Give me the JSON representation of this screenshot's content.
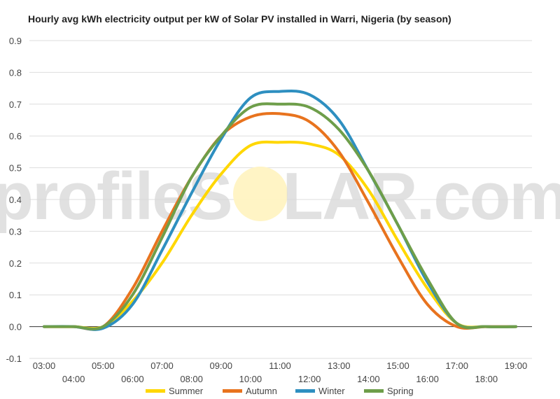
{
  "chart_data": {
    "type": "line",
    "title": "Hourly avg kWh electricity output per kW of Solar PV installed in Warri, Nigeria (by season)",
    "xlabel": "",
    "ylabel": "",
    "ylim": [
      -0.1,
      0.9
    ],
    "yticks": [
      "-0.1",
      "0.0",
      "0.1",
      "0.2",
      "0.3",
      "0.4",
      "0.5",
      "0.6",
      "0.7",
      "0.8",
      "0.9"
    ],
    "x": [
      "03:00",
      "04:00",
      "05:00",
      "06:00",
      "07:00",
      "08:00",
      "09:00",
      "10:00",
      "11:00",
      "12:00",
      "13:00",
      "14:00",
      "15:00",
      "16:00",
      "17:00",
      "18:00",
      "19:00"
    ],
    "grid": true,
    "legend": "bottom",
    "watermark": "profileSOLAR.com",
    "series": [
      {
        "name": "Summer",
        "color": "#FFD700",
        "values": [
          0.0,
          0.0,
          0.0,
          0.08,
          0.2,
          0.35,
          0.48,
          0.57,
          0.58,
          0.575,
          0.54,
          0.43,
          0.27,
          0.12,
          0.01,
          0.0,
          0.0
        ]
      },
      {
        "name": "Autumn",
        "color": "#E8731E",
        "values": [
          0.0,
          0.0,
          0.0,
          0.12,
          0.3,
          0.47,
          0.6,
          0.66,
          0.67,
          0.645,
          0.55,
          0.39,
          0.22,
          0.07,
          0.0,
          0.0,
          0.0
        ]
      },
      {
        "name": "Winter",
        "color": "#2E8FC0",
        "values": [
          0.0,
          0.0,
          -0.005,
          0.07,
          0.24,
          0.42,
          0.59,
          0.72,
          0.74,
          0.73,
          0.65,
          0.49,
          0.32,
          0.14,
          0.01,
          0.0,
          0.0
        ]
      },
      {
        "name": "Spring",
        "color": "#6E9E4A",
        "values": [
          0.0,
          0.0,
          0.0,
          0.1,
          0.28,
          0.47,
          0.6,
          0.69,
          0.7,
          0.69,
          0.62,
          0.49,
          0.32,
          0.15,
          0.01,
          0.0,
          0.0
        ]
      }
    ]
  }
}
